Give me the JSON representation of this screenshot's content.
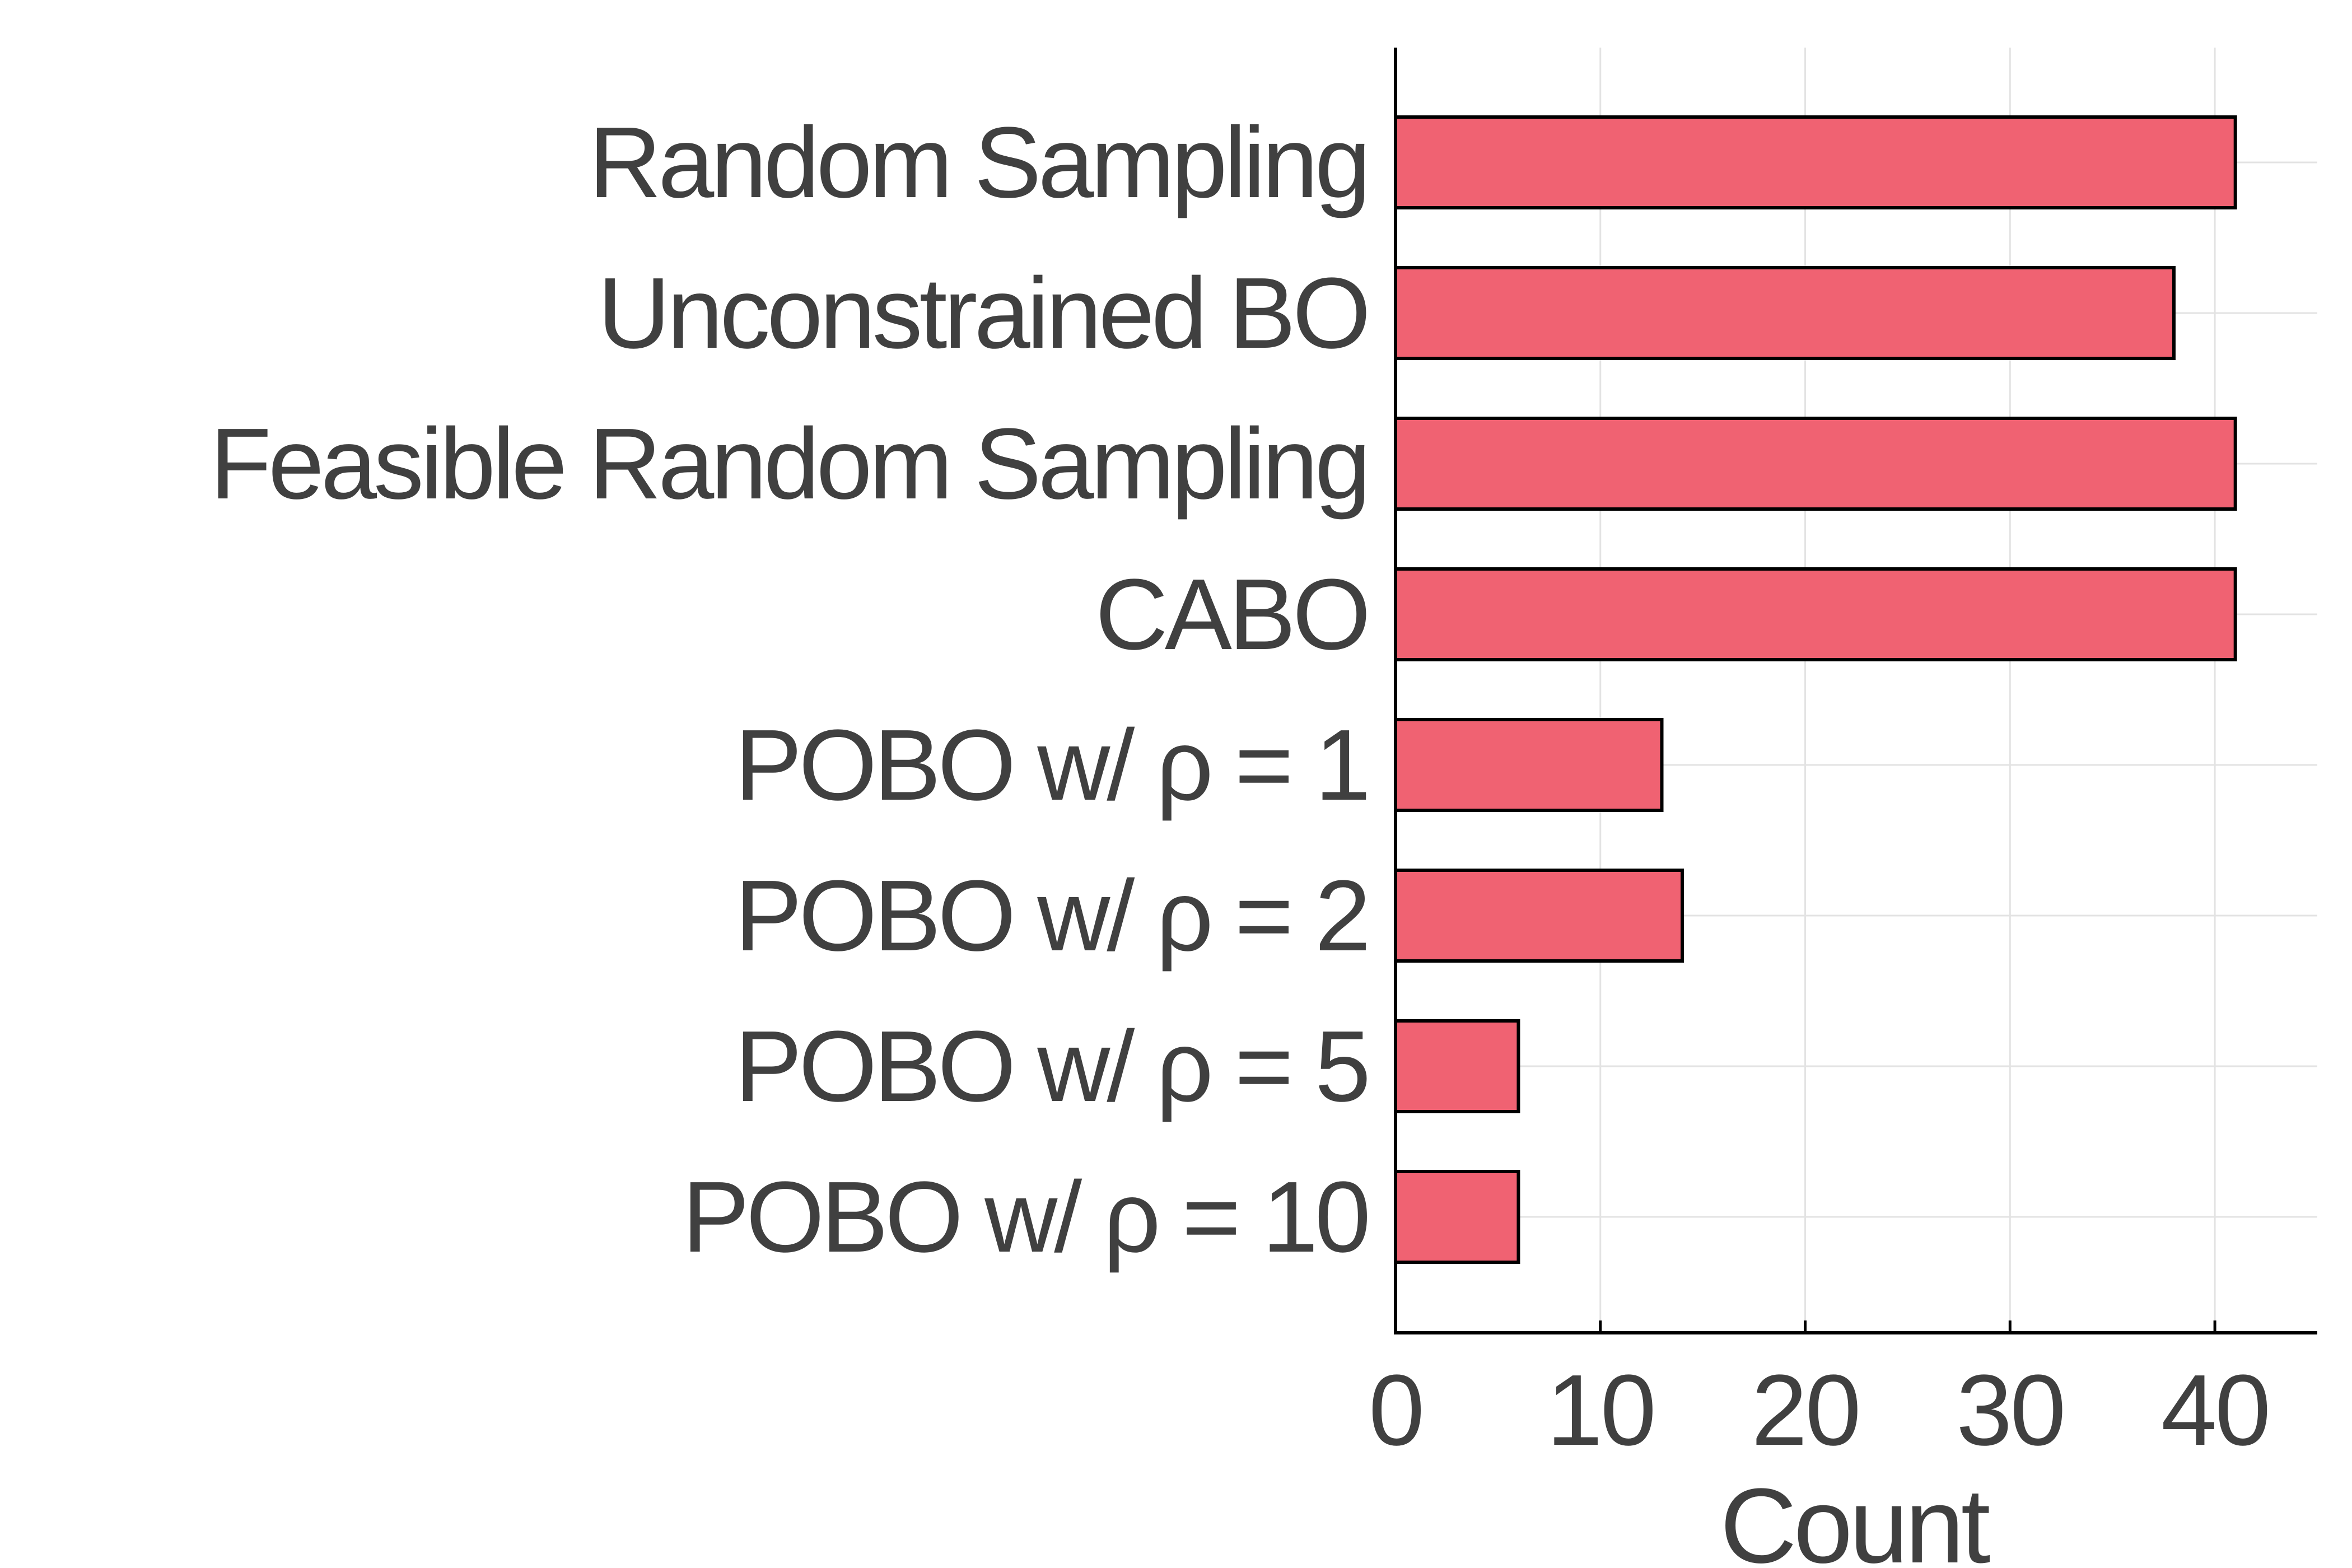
{
  "chart_data": {
    "type": "bar",
    "orientation": "horizontal",
    "categories": [
      "Random Sampling",
      "Unconstrained BO",
      "Feasible Random Sampling",
      "CABO",
      "POBO w/ ρ = 1",
      "POBO w/ ρ = 2",
      "POBO w/ ρ = 5",
      "POBO w/ ρ = 10"
    ],
    "values": [
      41,
      38,
      41,
      41,
      13,
      14,
      6,
      6
    ],
    "title": "",
    "xlabel": "Count",
    "ylabel": "",
    "xlim": [
      0,
      45
    ],
    "xticks": [
      0,
      10,
      20,
      30,
      40
    ],
    "xtick_labels": [
      "0",
      "10",
      "20",
      "30",
      "40"
    ],
    "grid": true,
    "legend": "none",
    "colors": {
      "bar_fill": "#f06272",
      "bar_edge": "#000000",
      "grid": "#e3e3e3",
      "text": "#404040"
    }
  }
}
